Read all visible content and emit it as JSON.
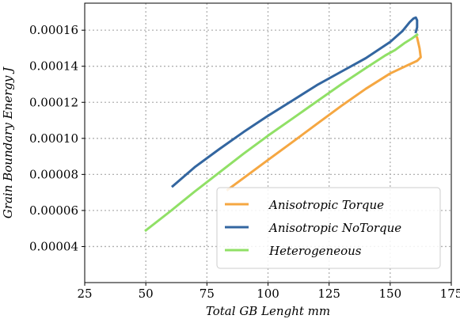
{
  "chart_data": {
    "type": "line",
    "title": "",
    "xlabel": "Total GB Lenght mm",
    "ylabel": "Grain Boundary Energy J",
    "xlim": [
      25,
      175
    ],
    "ylim": [
      2e-05,
      0.000175
    ],
    "xticks": [
      25,
      50,
      75,
      100,
      125,
      150,
      175
    ],
    "yticks": [
      4e-05,
      6e-05,
      8e-05,
      0.0001,
      0.00012,
      0.00014,
      0.00016
    ],
    "xtick_labels": [
      "25",
      "50",
      "75",
      "100",
      "125",
      "150",
      "175"
    ],
    "ytick_labels": [
      "0.00004",
      "0.00006",
      "0.00008",
      "0.00010",
      "0.00012",
      "0.00014",
      "0.00016"
    ],
    "grid": true,
    "legend_position": "lower-right",
    "series": [
      {
        "name": "Anisotropic Torque",
        "color": "#f5a742",
        "points": [
          [
            83.5,
            7.15e-05
          ],
          [
            90,
            7.8e-05
          ],
          [
            100,
            8.8e-05
          ],
          [
            110,
            9.8e-05
          ],
          [
            120,
            0.000108
          ],
          [
            130,
            0.000118
          ],
          [
            140,
            0.0001275
          ],
          [
            150,
            0.000136
          ],
          [
            157,
            0.0001405
          ],
          [
            161,
            0.000143
          ],
          [
            162.5,
            0.000145
          ],
          [
            162,
            0.00015
          ],
          [
            161,
            0.000156
          ],
          [
            160.5,
            0.000157
          ]
        ]
      },
      {
        "name": "Anisotropic NoTorque",
        "color": "#3366a0",
        "points": [
          [
            61,
            7.35e-05
          ],
          [
            70,
            8.4e-05
          ],
          [
            80,
            9.4e-05
          ],
          [
            90,
            0.0001035
          ],
          [
            100,
            0.0001125
          ],
          [
            110,
            0.000121
          ],
          [
            120,
            0.0001295
          ],
          [
            130,
            0.000137
          ],
          [
            140,
            0.0001445
          ],
          [
            150,
            0.0001535
          ],
          [
            155,
            0.0001595
          ],
          [
            158,
            0.0001645
          ],
          [
            159.5,
            0.0001665
          ],
          [
            160.5,
            0.000167
          ],
          [
            161,
            0.0001655
          ],
          [
            161,
            0.0001615
          ],
          [
            160.5,
            0.000159
          ]
        ]
      },
      {
        "name": "Heterogeneous",
        "color": "#90e066",
        "points": [
          [
            50,
            4.9e-05
          ],
          [
            60,
            5.95e-05
          ],
          [
            70,
            7.05e-05
          ],
          [
            80,
            8.1e-05
          ],
          [
            90,
            9.15e-05
          ],
          [
            100,
            0.0001015
          ],
          [
            110,
            0.000111
          ],
          [
            120,
            0.0001205
          ],
          [
            130,
            0.00013
          ],
          [
            140,
            0.000139
          ],
          [
            148,
            0.000146
          ],
          [
            152,
            0.000149
          ],
          [
            156,
            0.000153
          ],
          [
            159,
            0.0001555
          ],
          [
            161,
            0.0001575
          ]
        ]
      }
    ]
  }
}
